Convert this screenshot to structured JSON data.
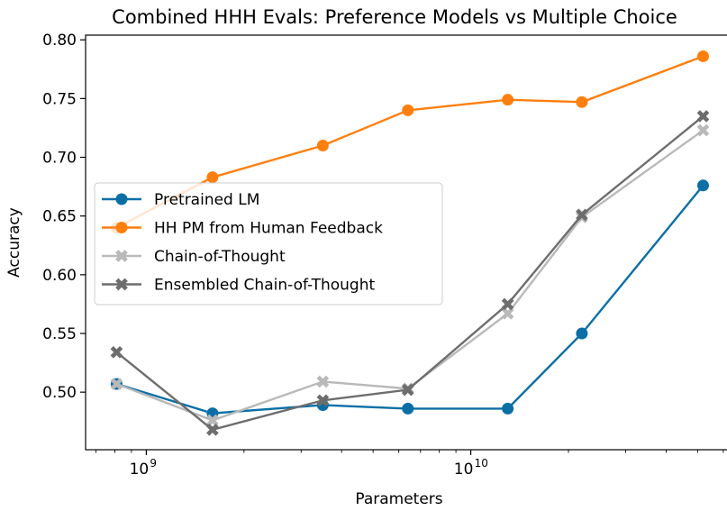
{
  "chart_data": {
    "type": "line",
    "title": "Combined HHH Evals: Preference Models vs Multiple Choice",
    "xlabel": "Parameters",
    "ylabel": "Accuracy",
    "xscale": "log",
    "xlim": [
      650000000,
      62000000000
    ],
    "ylim": [
      0.451,
      0.804
    ],
    "grid": false,
    "legend_position": "center-left",
    "x": [
      810000000,
      1600000000,
      3500000000,
      6400000000,
      13000000000,
      22000000000,
      52000000000
    ],
    "x_tick_labels": [
      {
        "value": 1000000000,
        "base": "10",
        "exp": "9"
      },
      {
        "value": 10000000000,
        "base": "10",
        "exp": "10"
      }
    ],
    "y_ticks": [
      0.5,
      0.55,
      0.6,
      0.65,
      0.7,
      0.75,
      0.8
    ],
    "y_tick_labels": [
      "0.50",
      "0.55",
      "0.60",
      "0.65",
      "0.70",
      "0.75",
      "0.80"
    ],
    "series": [
      {
        "name": "Pretrained LM",
        "color": "#0b6fa6",
        "marker": "circle",
        "values": [
          0.507,
          0.482,
          0.489,
          0.486,
          0.486,
          0.55,
          0.676
        ]
      },
      {
        "name": "HH PM from Human Feedback",
        "color": "#ff7f0e",
        "marker": "circle",
        "values": [
          0.64,
          0.683,
          0.71,
          0.74,
          0.749,
          0.747,
          0.786
        ]
      },
      {
        "name": "Chain-of-Thought",
        "color": "#b9b9b9",
        "marker": "x",
        "values": [
          0.507,
          0.476,
          0.509,
          0.503,
          0.567,
          0.649,
          0.723
        ]
      },
      {
        "name": "Ensembled Chain-of-Thought",
        "color": "#6d6d6d",
        "marker": "x",
        "values": [
          0.534,
          0.468,
          0.493,
          0.502,
          0.575,
          0.651,
          0.735
        ]
      }
    ]
  }
}
